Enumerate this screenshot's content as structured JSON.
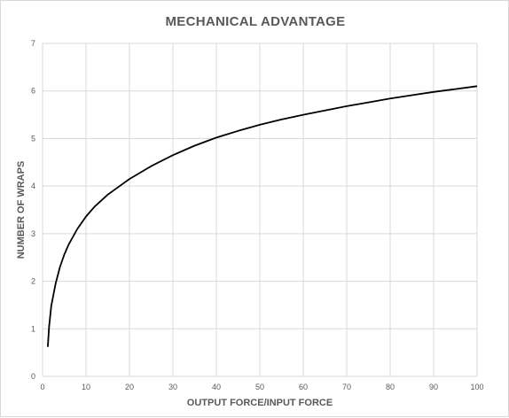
{
  "chart_data": {
    "type": "line",
    "title": "MECHANICAL ADVANTAGE",
    "xlabel": "OUTPUT FORCE/INPUT FORCE",
    "ylabel": "NUMBER OF WRAPS",
    "xlim": [
      0,
      100
    ],
    "ylim": [
      0,
      7
    ],
    "xticks": [
      0,
      10,
      20,
      30,
      40,
      50,
      60,
      70,
      80,
      90,
      100
    ],
    "yticks": [
      0,
      1,
      2,
      3,
      4,
      5,
      6,
      7
    ],
    "grid": true,
    "legend": "none",
    "series": [
      {
        "color": "#000000",
        "x": [
          1.2,
          1.5,
          2,
          3,
          4,
          5,
          6,
          8,
          10,
          12,
          15,
          20,
          25,
          30,
          35,
          40,
          45,
          50,
          55,
          60,
          65,
          70,
          75,
          80,
          85,
          90,
          95,
          100
        ],
        "y": [
          0.62,
          1.05,
          1.48,
          1.95,
          2.3,
          2.56,
          2.77,
          3.1,
          3.36,
          3.57,
          3.82,
          4.15,
          4.42,
          4.65,
          4.85,
          5.02,
          5.16,
          5.29,
          5.4,
          5.5,
          5.59,
          5.68,
          5.76,
          5.84,
          5.91,
          5.98,
          6.04,
          6.1
        ]
      }
    ]
  }
}
